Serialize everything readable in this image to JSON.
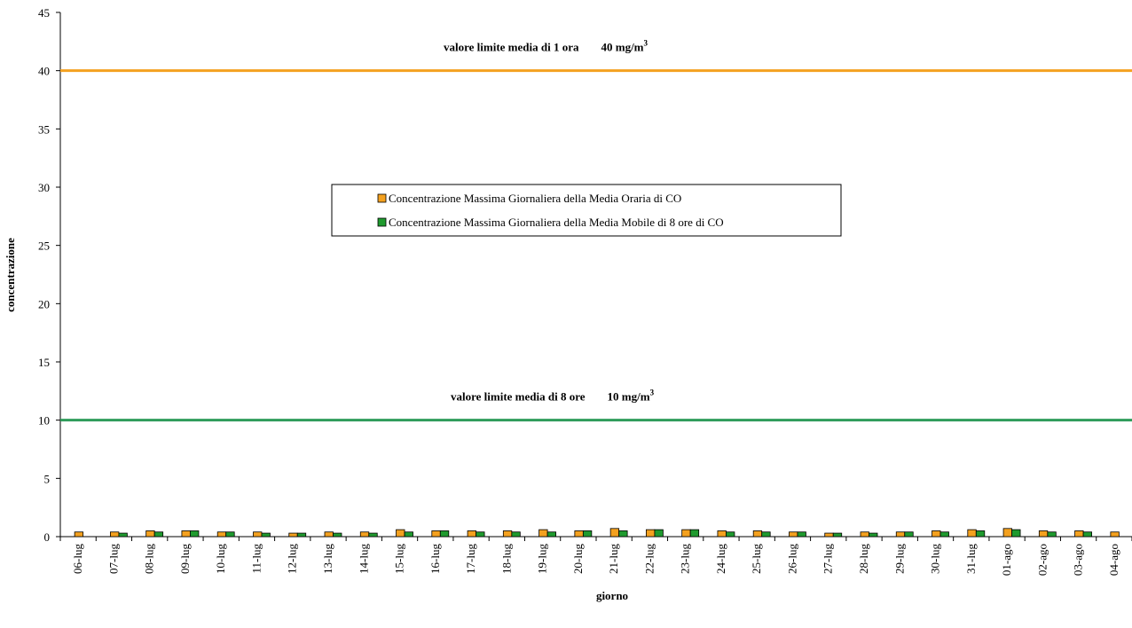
{
  "chart_data": {
    "type": "bar",
    "x_label": "giorno",
    "y_label": "concentrazione",
    "categories": [
      "06-lug",
      "07-lug",
      "08-lug",
      "09-lug",
      "10-lug",
      "11-lug",
      "12-lug",
      "13-lug",
      "14-lug",
      "15-lug",
      "16-lug",
      "17-lug",
      "18-lug",
      "19-lug",
      "20-lug",
      "21-lug",
      "22-lug",
      "23-lug",
      "24-lug",
      "25-lug",
      "26-lug",
      "27-lug",
      "28-lug",
      "29-lug",
      "30-lug",
      "31-lug",
      "01-ago",
      "02-ago",
      "03-ago",
      "04-ago"
    ],
    "series": [
      {
        "name": "Concentrazione Massima Giornaliera della Media Oraria di CO",
        "color": "#f4a11f",
        "values": [
          0.4,
          0.4,
          0.5,
          0.5,
          0.4,
          0.4,
          0.3,
          0.4,
          0.4,
          0.6,
          0.5,
          0.5,
          0.5,
          0.6,
          0.5,
          0.7,
          0.6,
          0.6,
          0.5,
          0.5,
          0.4,
          0.3,
          0.4,
          0.4,
          0.5,
          0.6,
          0.7,
          0.5,
          0.5,
          0.4
        ]
      },
      {
        "name": "Concentrazione Massima Giornaliera della Media Mobile di 8 ore di CO",
        "color": "#1f9a2e",
        "values": [
          null,
          0.3,
          0.4,
          0.5,
          0.4,
          0.3,
          0.3,
          0.3,
          0.3,
          0.4,
          0.5,
          0.4,
          0.4,
          0.4,
          0.5,
          0.5,
          0.6,
          0.6,
          0.4,
          0.4,
          0.4,
          0.3,
          0.3,
          0.4,
          0.4,
          0.5,
          0.6,
          0.4,
          0.4,
          null
        ]
      }
    ],
    "reference_lines": [
      {
        "value": 40,
        "color": "#f4a11f",
        "label": "valore limite media di 1 ora",
        "unit_label": "40 mg/m",
        "superscript": "3"
      },
      {
        "value": 10,
        "color": "#2e9c5a",
        "label": "valore limite media di 8 ore",
        "unit_label": "10 mg/m",
        "superscript": "3"
      }
    ],
    "ylim": [
      0,
      45
    ],
    "yticks": [
      0,
      5,
      10,
      15,
      20,
      25,
      30,
      35,
      40,
      45
    ],
    "legend": "center"
  }
}
